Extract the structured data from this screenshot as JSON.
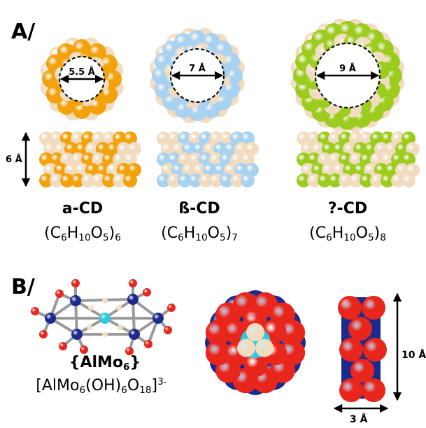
{
  "panel_a": {
    "label": "A/",
    "height": "6 Å",
    "cyclodextrins": [
      {
        "name": "a-CD",
        "diameter": "5.5 Å",
        "formula": [
          {
            "text": "(C"
          },
          {
            "sub": "6"
          },
          {
            "text": "H"
          },
          {
            "sub": "10"
          },
          {
            "text": "O"
          },
          {
            "sub": "5"
          },
          {
            "text": ")"
          },
          {
            "sub": "6"
          }
        ]
      },
      {
        "name": "ß-CD",
        "diameter": "7 Å",
        "formula": [
          {
            "text": "(C"
          },
          {
            "sub": "6"
          },
          {
            "text": "H"
          },
          {
            "sub": "10"
          },
          {
            "text": "O"
          },
          {
            "sub": "5"
          },
          {
            "text": ")"
          },
          {
            "sub": "7"
          }
        ]
      },
      {
        "name": "?-CD",
        "diameter": "9 Å",
        "formula": [
          {
            "text": "(C"
          },
          {
            "sub": "6"
          },
          {
            "text": "H"
          },
          {
            "sub": "10"
          },
          {
            "text": "O"
          },
          {
            "sub": "5"
          },
          {
            "text": ")"
          },
          {
            "sub": "8"
          }
        ]
      }
    ]
  },
  "panel_b": {
    "label": "B/",
    "height": "10 Å",
    "width": "3 Å",
    "name": [
      {
        "text": "{AlMo"
      },
      {
        "sub": "6"
      },
      {
        "text": "}"
      }
    ],
    "formula": [
      {
        "text": "[AlMo"
      },
      {
        "sub": "6"
      },
      {
        "text": "(OH)"
      },
      {
        "sub": "6"
      },
      {
        "text": "O"
      },
      {
        "sub": "18"
      },
      {
        "text": "]"
      },
      {
        "sup": "3-"
      }
    ]
  }
}
